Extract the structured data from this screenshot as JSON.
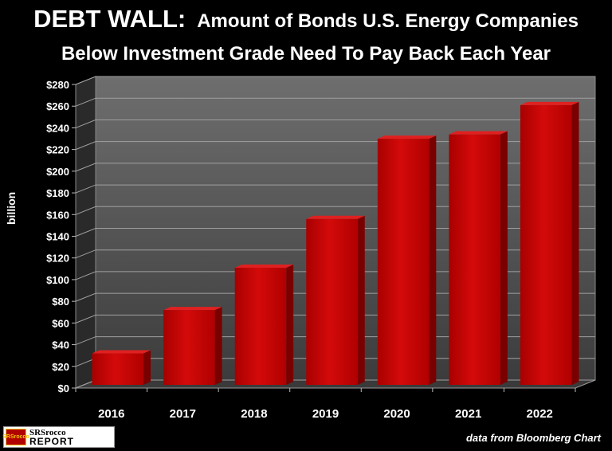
{
  "title": {
    "main": "DEBT WALL:",
    "sub": "Amount of Bonds U.S. Energy Companies",
    "line2": "Below Investment Grade Need To Pay Back Each Year"
  },
  "source": "data from Bloomberg Chart",
  "logo": {
    "badge": "SRSrocco",
    "line1": "SRSrocco",
    "line2": "REPORT"
  },
  "colors": {
    "background": "#000000",
    "plot_wall": "#555555",
    "bar": "#c00000",
    "bar_top": "#e02020",
    "bar_side": "#7a0000",
    "gridline": "#a0a0a0"
  },
  "chart_data": {
    "type": "bar",
    "title": "DEBT WALL: Amount of Bonds U.S. Energy Companies Below Investment Grade Need To Pay Back Each Year",
    "xlabel": "",
    "ylabel": "billion",
    "categories": [
      "2016",
      "2017",
      "2018",
      "2019",
      "2020",
      "2021",
      "2022"
    ],
    "values": [
      29,
      69,
      108,
      153,
      227,
      231,
      258
    ],
    "ylim": [
      0,
      280
    ],
    "ytick_step": 20,
    "ytick_labels": [
      "$0",
      "$20",
      "$40",
      "$60",
      "$80",
      "$100",
      "$120",
      "$140",
      "$160",
      "$180",
      "$200",
      "$220",
      "$240",
      "$260",
      "$280"
    ],
    "grid": true,
    "legend": "none"
  }
}
